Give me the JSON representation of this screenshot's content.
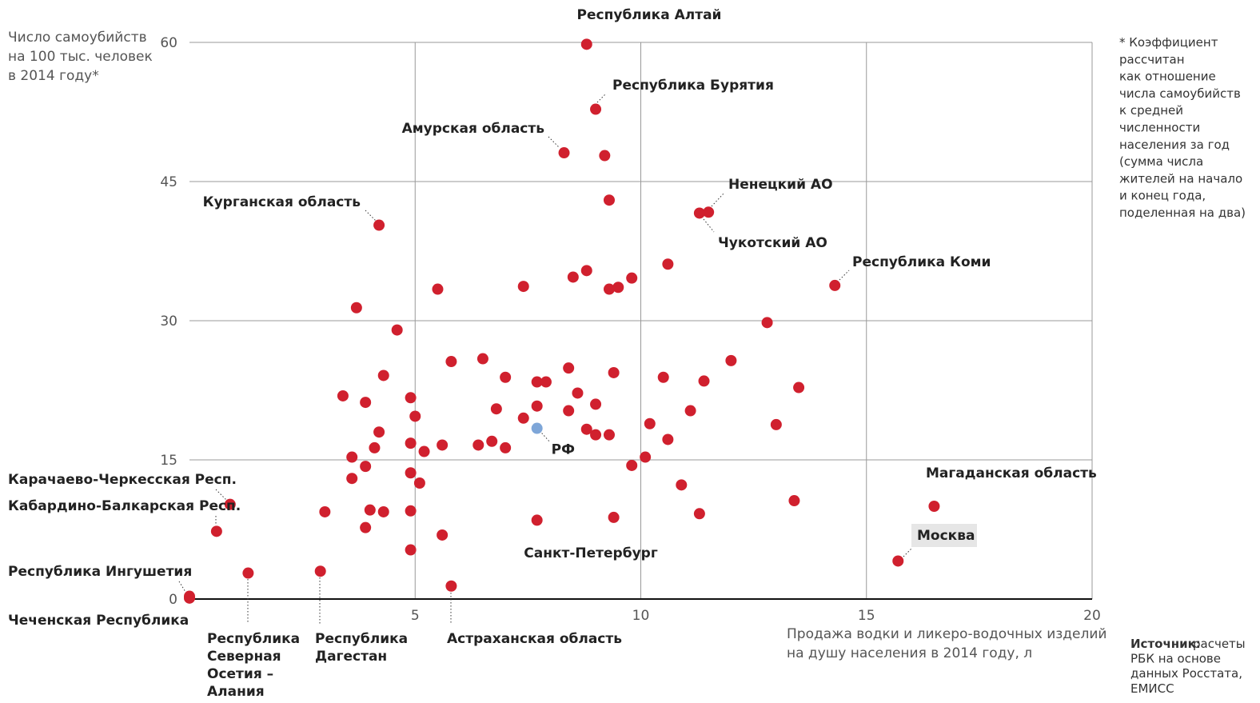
{
  "chart_data": {
    "type": "scatter",
    "y_title": "Число самоубийств\nна 100 тыс. человек\nв 2014 году*",
    "x_title": "Продажа водки и ликеро-водочных изделий\nна душу населения в 2014 году, л",
    "note": "* Коэффициент\nрассчитан\nкак отношение\nчисла самоубийств\nк средней\nчисленности\nнаселения за год\n(сумма числа\nжителей на начало\nи конец года,\nподеленная на два)",
    "source_label": "Источник:",
    "source": "расчеты\nРБК на основе\nданных Росстата,\nЕМИСС",
    "xlim": [
      0,
      20
    ],
    "xticks": [
      5,
      10,
      15,
      20
    ],
    "ylim": [
      0,
      60
    ],
    "yticks": [
      0,
      15,
      30,
      45,
      60
    ],
    "grid": true,
    "series": [
      {
        "color": "#d0202e",
        "x": [
          8.8,
          9.0,
          8.3,
          9.2,
          9.3,
          11.5,
          11.3,
          4.2,
          10.6,
          8.8,
          8.5,
          9.8,
          9.5,
          9.3,
          7.4,
          5.5,
          14.3,
          3.7,
          12.8,
          4.6,
          5.8,
          6.5,
          12.0,
          8.4,
          9.4,
          4.3,
          7.0,
          10.5,
          7.7,
          7.9,
          11.4,
          13.5,
          8.6,
          3.4,
          4.9,
          3.9,
          9.0,
          7.7,
          8.4,
          6.8,
          11.1,
          5.0,
          7.4,
          10.2,
          13.0,
          4.2,
          8.8,
          9.0,
          9.3,
          10.6,
          4.9,
          5.6,
          6.4,
          6.7,
          7.0,
          4.1,
          5.2,
          3.6,
          10.1,
          3.9,
          9.8,
          4.9,
          3.6,
          5.1,
          10.9,
          0.9,
          16.5,
          13.4,
          3.0,
          4.0,
          4.3,
          4.9,
          11.3,
          9.4,
          7.7,
          3.9,
          0.6,
          5.6,
          4.9,
          15.7,
          1.3,
          2.9,
          5.8,
          0.0,
          0.0
        ],
        "values": [
          59.8,
          52.8,
          48.1,
          47.8,
          43.0,
          41.7,
          41.6,
          40.3,
          36.1,
          35.4,
          34.7,
          34.6,
          33.6,
          33.4,
          33.7,
          33.4,
          33.8,
          31.4,
          29.8,
          29.0,
          25.6,
          25.9,
          25.7,
          24.9,
          24.4,
          24.1,
          23.9,
          23.9,
          23.4,
          23.4,
          23.5,
          22.8,
          22.2,
          21.9,
          21.7,
          21.2,
          21.0,
          20.8,
          20.3,
          20.5,
          20.3,
          19.7,
          19.5,
          18.9,
          18.8,
          18.0,
          18.3,
          17.7,
          17.7,
          17.2,
          16.8,
          16.6,
          16.6,
          17.0,
          16.3,
          16.3,
          15.9,
          15.3,
          15.3,
          14.3,
          14.4,
          13.6,
          13.0,
          12.5,
          12.3,
          10.2,
          10.0,
          10.6,
          9.4,
          9.6,
          9.4,
          9.5,
          9.2,
          8.8,
          8.5,
          7.7,
          7.3,
          6.9,
          5.3,
          4.1,
          2.8,
          3.0,
          1.4,
          0.3,
          0.1
        ],
        "labels": [
          "Республика Алтай",
          "Республика Бурятия",
          "Амурская область",
          null,
          null,
          "Ненецкий АО",
          "Чукотский АО",
          "Курганская область",
          null,
          null,
          null,
          null,
          null,
          null,
          null,
          null,
          "Республика Коми",
          null,
          null,
          null,
          null,
          null,
          null,
          null,
          null,
          null,
          null,
          null,
          null,
          null,
          null,
          null,
          null,
          null,
          null,
          null,
          null,
          null,
          null,
          null,
          null,
          null,
          null,
          null,
          null,
          null,
          null,
          null,
          null,
          null,
          null,
          null,
          null,
          null,
          null,
          null,
          null,
          null,
          null,
          null,
          null,
          null,
          null,
          null,
          null,
          "Карачаево-Черкесская Респ.",
          "Магаданская область",
          null,
          null,
          null,
          null,
          null,
          null,
          null,
          "Санкт-Петербург",
          null,
          "Кабардино-Балкарская Респ.",
          null,
          null,
          "Москва",
          "Республика\nСеверная\nОсетия –\nАлания",
          "Республика\nДагестан",
          "Астраханская область",
          "Республика Ингушетия",
          "Чеченская Республика"
        ]
      },
      {
        "name": "РФ",
        "color": "#7ea6d8",
        "x": [
          7.7
        ],
        "values": [
          18.4
        ]
      }
    ]
  }
}
